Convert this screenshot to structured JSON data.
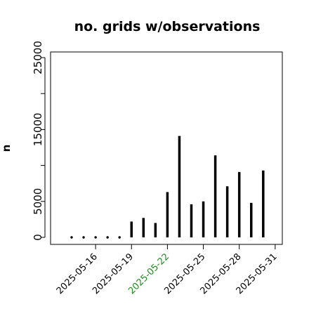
{
  "chart_data": {
    "type": "bar",
    "title": "no. grids w/observations",
    "ylabel": "n",
    "xlabel": "",
    "ylim": [
      0,
      25000
    ],
    "y_ticks": [
      "0",
      "5000",
      "15000",
      "25000"
    ],
    "x_ticks": [
      "2025-05-16",
      "2025-05-19",
      "2025-05-22",
      "2025-05-25",
      "2025-05-28",
      "2025-05-31"
    ],
    "x_tick_colors": [
      "#000000",
      "#000000",
      "#228B22",
      "#000000",
      "#000000",
      "#000000"
    ],
    "categories": [
      "2025-05-14",
      "2025-05-15",
      "2025-05-16",
      "2025-05-17",
      "2025-05-18",
      "2025-05-19",
      "2025-05-20",
      "2025-05-21",
      "2025-05-22",
      "2025-05-23",
      "2025-05-24",
      "2025-05-25",
      "2025-05-26",
      "2025-05-27",
      "2025-05-28",
      "2025-05-29",
      "2025-05-30",
      "2025-05-31"
    ],
    "values": [
      0,
      0,
      0,
      0,
      0,
      2200,
      2700,
      2000,
      6300,
      14100,
      4600,
      5000,
      11400,
      7100,
      9100,
      4800,
      9300,
      0
    ],
    "grid": false,
    "bar_color": "#000000"
  }
}
